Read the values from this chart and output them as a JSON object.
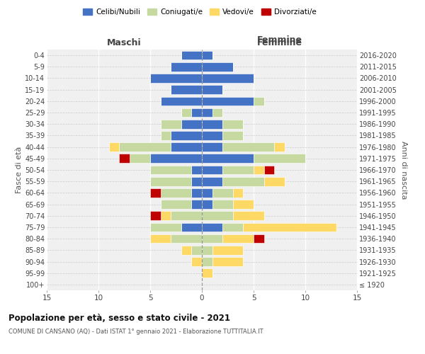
{
  "age_groups": [
    "100+",
    "95-99",
    "90-94",
    "85-89",
    "80-84",
    "75-79",
    "70-74",
    "65-69",
    "60-64",
    "55-59",
    "50-54",
    "45-49",
    "40-44",
    "35-39",
    "30-34",
    "25-29",
    "20-24",
    "15-19",
    "10-14",
    "5-9",
    "0-4"
  ],
  "birth_years": [
    "≤ 1920",
    "1921-1925",
    "1926-1930",
    "1931-1935",
    "1936-1940",
    "1941-1945",
    "1946-1950",
    "1951-1955",
    "1956-1960",
    "1961-1965",
    "1966-1970",
    "1971-1975",
    "1976-1980",
    "1981-1985",
    "1986-1990",
    "1991-1995",
    "1996-2000",
    "2001-2005",
    "2006-2010",
    "2011-2015",
    "2016-2020"
  ],
  "maschi": {
    "celibi": [
      0,
      0,
      0,
      0,
      0,
      2,
      0,
      1,
      1,
      1,
      1,
      5,
      3,
      3,
      2,
      1,
      4,
      3,
      5,
      3,
      2
    ],
    "coniugati": [
      0,
      0,
      0,
      1,
      3,
      3,
      3,
      3,
      3,
      4,
      4,
      2,
      5,
      1,
      2,
      1,
      0,
      0,
      0,
      0,
      0
    ],
    "vedovi": [
      0,
      0,
      1,
      1,
      2,
      0,
      1,
      0,
      0,
      0,
      0,
      0,
      1,
      0,
      0,
      0,
      0,
      0,
      0,
      0,
      0
    ],
    "divorziati": [
      0,
      0,
      0,
      0,
      0,
      0,
      1,
      0,
      1,
      0,
      0,
      1,
      0,
      0,
      0,
      0,
      0,
      0,
      0,
      0,
      0
    ]
  },
  "femmine": {
    "nubili": [
      0,
      0,
      0,
      0,
      0,
      2,
      0,
      1,
      1,
      2,
      2,
      5,
      2,
      2,
      2,
      1,
      5,
      2,
      5,
      3,
      1
    ],
    "coniugate": [
      0,
      0,
      1,
      1,
      2,
      2,
      3,
      2,
      2,
      4,
      3,
      5,
      5,
      2,
      2,
      1,
      1,
      0,
      0,
      0,
      0
    ],
    "vedove": [
      0,
      1,
      3,
      3,
      3,
      9,
      3,
      2,
      1,
      2,
      1,
      0,
      1,
      0,
      0,
      0,
      0,
      0,
      0,
      0,
      0
    ],
    "divorziate": [
      0,
      0,
      0,
      0,
      1,
      0,
      0,
      0,
      0,
      0,
      1,
      0,
      0,
      0,
      0,
      0,
      0,
      0,
      0,
      0,
      0
    ]
  },
  "colors": {
    "celibi": "#4472C4",
    "coniugati": "#C5D9A0",
    "vedovi": "#FFD966",
    "divorziati": "#C00000"
  },
  "xlim": 15,
  "title": "Popolazione per età, sesso e stato civile - 2021",
  "subtitle": "COMUNE DI CANSANO (AQ) - Dati ISTAT 1° gennaio 2021 - Elaborazione TUTTITALIA.IT",
  "ylabel_left": "Fasce di età",
  "ylabel_right": "Anni di nascita",
  "legend_labels": [
    "Celibi/Nubili",
    "Coniugati/e",
    "Vedovi/e",
    "Divorziati/e"
  ],
  "bg_color": "#ffffff",
  "plot_bg": "#f0f0f0"
}
